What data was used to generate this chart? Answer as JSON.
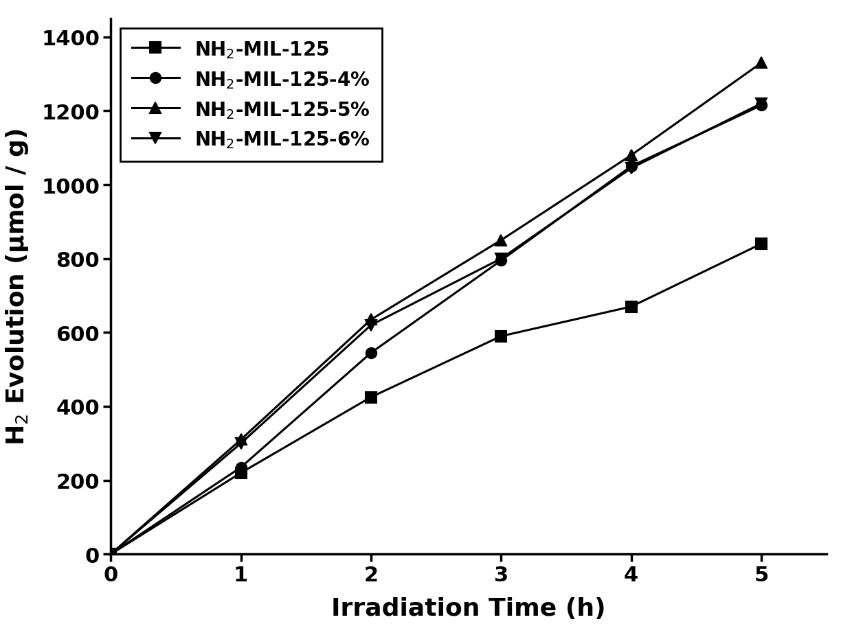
{
  "x": [
    0,
    1,
    2,
    3,
    4,
    5
  ],
  "series": [
    {
      "label": "NH$_2$-MIL-125",
      "y": [
        0,
        220,
        425,
        590,
        670,
        840
      ],
      "marker": "s",
      "color": "#000000"
    },
    {
      "label": "NH$_2$-MIL-125-4%",
      "y": [
        0,
        235,
        545,
        795,
        1050,
        1215
      ],
      "marker": "o",
      "color": "#000000"
    },
    {
      "label": "NH$_2$-MIL-125-5%",
      "y": [
        0,
        310,
        635,
        850,
        1080,
        1330
      ],
      "marker": "^",
      "color": "#000000"
    },
    {
      "label": "NH$_2$-MIL-125-6%",
      "y": [
        0,
        300,
        620,
        800,
        1045,
        1220
      ],
      "marker": "v",
      "color": "#000000"
    }
  ],
  "xlabel": "Irradiation Time (h)",
  "ylabel": "H$_2$ Evolution (μmol / g)",
  "xlim": [
    0,
    5.5
  ],
  "ylim": [
    0,
    1450
  ],
  "xticks": [
    0,
    1,
    2,
    3,
    4,
    5
  ],
  "yticks": [
    0,
    200,
    400,
    600,
    800,
    1000,
    1200,
    1400
  ],
  "linewidth": 2.2,
  "markersize": 11,
  "legend_fontsize": 20,
  "axis_label_fontsize": 26,
  "tick_fontsize": 22,
  "spine_linewidth": 2.5,
  "background_color": "#ffffff"
}
